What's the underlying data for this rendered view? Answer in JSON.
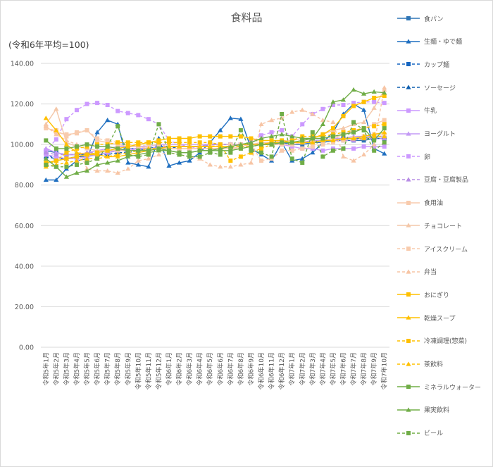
{
  "chart_data": {
    "type": "line",
    "title": "食料品",
    "ylabel": "(令和6年平均=100)",
    "xlabel": "",
    "ylim": [
      0,
      140
    ],
    "yticks": [
      "0.00",
      "20.00",
      "40.00",
      "60.00",
      "80.00",
      "100.00",
      "120.00",
      "140.00"
    ],
    "grid": true,
    "legend_position": "right",
    "categories": [
      "令和5年1月",
      "令和5年2月",
      "令和5年3月",
      "令和5年4月",
      "令和5年5月",
      "令和5年6月",
      "令和5年7月",
      "令和5年8月",
      "令和5年9月",
      "令和5年10月",
      "令和5年11月",
      "令和5年12月",
      "令和6年1月",
      "令和6年2月",
      "令和6年3月",
      "令和6年4月",
      "令和6年5月",
      "令和6年6月",
      "令和6年7月",
      "令和6年8月",
      "令和6年9月",
      "令和6年10月",
      "令和6年11月",
      "令和6年12月",
      "令和7年1月",
      "令和7年2月",
      "令和7年3月",
      "令和7年4月",
      "令和7年5月",
      "令和7年6月",
      "令和7年7月",
      "令和7年8月",
      "令和7年9月",
      "令和7年10月"
    ],
    "series": [
      {
        "name": "食パン",
        "color": "#2e75b6",
        "dash": false,
        "marker": "square",
        "values": [
          97,
          96,
          95,
          95,
          95,
          95,
          96,
          97,
          97,
          97,
          98,
          98,
          99,
          99,
          99,
          99,
          100,
          100,
          100,
          100,
          100,
          100,
          100,
          101,
          100,
          100,
          101,
          101,
          102,
          102,
          102,
          102,
          103,
          103
        ]
      },
      {
        "name": "生麺・ゆで麺",
        "color": "#1f6fc0",
        "dash": false,
        "marker": "triangle",
        "values": [
          82.5,
          82.5,
          88,
          92,
          93,
          106,
          112,
          110,
          91,
          90,
          89,
          103,
          89.5,
          91,
          92,
          96,
          101,
          107,
          113,
          112.5,
          98,
          95,
          92,
          101,
          92,
          93,
          96,
          101,
          106,
          115,
          120,
          117,
          98,
          95.5
        ]
      },
      {
        "name": "カップ麺",
        "color": "#1565c0",
        "dash": true,
        "marker": "square",
        "values": [
          96,
          92,
          93,
          94,
          94,
          95,
          96,
          97,
          98,
          98,
          98,
          99,
          99,
          99,
          99,
          99,
          100,
          100,
          100,
          100,
          100,
          100,
          101,
          101,
          101,
          101,
          102,
          102,
          103,
          103,
          103,
          103,
          103,
          103
        ]
      },
      {
        "name": "ソーセージ",
        "color": "#1060b0",
        "dash": true,
        "marker": "triangle",
        "values": [
          94,
          93,
          93,
          94,
          94,
          95,
          95,
          96,
          96,
          97,
          97,
          98,
          98,
          99,
          99,
          99,
          100,
          100,
          100,
          100,
          100,
          100,
          100,
          101,
          101,
          101,
          102,
          102,
          102,
          103,
          103,
          103,
          104,
          104
        ]
      },
      {
        "name": "牛乳",
        "color": "#cc99ff",
        "dash": false,
        "marker": "square",
        "values": [
          95,
          94,
          93,
          93,
          94,
          95,
          96,
          97,
          97,
          98,
          98,
          98,
          99,
          99,
          99,
          99,
          100,
          100,
          100,
          100,
          100,
          100,
          100,
          100,
          99,
          98,
          98,
          97,
          98,
          98,
          98,
          99,
          99,
          99
        ]
      },
      {
        "name": "ヨーグルト",
        "color": "#c49af5",
        "dash": false,
        "marker": "triangle",
        "values": [
          98,
          96,
          95,
          95,
          96,
          97,
          98,
          99,
          99,
          99,
          99,
          100,
          100,
          100,
          100,
          100,
          100,
          100,
          100,
          100,
          100,
          100,
          101,
          101,
          101,
          101,
          102,
          102,
          103,
          103,
          104,
          104,
          104,
          104
        ]
      },
      {
        "name": "卵",
        "color": "#cc99ff",
        "dash": true,
        "marker": "square",
        "values": [
          97,
          102.5,
          112.5,
          117,
          120,
          120.5,
          119.5,
          116.5,
          115.5,
          114.5,
          112.5,
          110,
          102,
          100,
          99,
          98,
          98,
          98,
          99,
          100,
          101,
          104.5,
          106,
          107,
          104,
          110,
          115,
          117.5,
          119.5,
          119.5,
          120.5,
          121,
          121,
          120.5
        ]
      },
      {
        "name": "豆腐・豆腐製品",
        "color": "#b98ee6",
        "dash": true,
        "marker": "triangle",
        "values": [
          96,
          95,
          95,
          95,
          96,
          96,
          97,
          97,
          98,
          98,
          98,
          99,
          99,
          99,
          99,
          99,
          100,
          100,
          100,
          100,
          100,
          100,
          101,
          101,
          101,
          101,
          101,
          102,
          102,
          102,
          102,
          103,
          103,
          103
        ]
      },
      {
        "name": "食用油",
        "color": "#f8cbad",
        "dash": false,
        "marker": "square",
        "values": [
          108.5,
          106,
          105,
          105.5,
          107,
          102,
          101,
          100,
          99,
          99,
          98,
          98,
          98,
          98,
          98,
          98,
          98,
          98,
          98,
          98,
          99,
          100,
          100,
          100,
          100,
          101,
          101,
          102,
          103,
          105,
          107,
          108,
          110,
          112
        ]
      },
      {
        "name": "チョコレート",
        "color": "#f4c7a8",
        "dash": false,
        "marker": "triangle",
        "values": [
          110,
          117.5,
          101,
          99,
          98,
          97,
          97,
          97,
          97,
          97,
          97,
          98,
          98,
          98,
          98,
          98,
          98,
          98,
          98,
          99,
          100,
          101,
          101,
          102,
          102,
          103,
          103,
          105,
          107,
          108,
          110,
          111,
          118,
          127
        ]
      },
      {
        "name": "アイスクリーム",
        "color": "#f8cbad",
        "dash": true,
        "marker": "square",
        "values": [
          108,
          107,
          104,
          106,
          107,
          103,
          102,
          101,
          100,
          100,
          99,
          100,
          99,
          99,
          99,
          99,
          99,
          100,
          100,
          100,
          100,
          92,
          93,
          97,
          97,
          98,
          99,
          100,
          101,
          102,
          103,
          104,
          105,
          105
        ]
      },
      {
        "name": "弁当",
        "color": "#f7c5a5",
        "dash": true,
        "marker": "triangle",
        "values": [
          109,
          105,
          102,
          100,
          88,
          87,
          87,
          86,
          88,
          92,
          93,
          95,
          96,
          95,
          94,
          93,
          90,
          89,
          89,
          90,
          91,
          110,
          112,
          113,
          116,
          117,
          115,
          112,
          111,
          94,
          92,
          95,
          100,
          128
        ]
      },
      {
        "name": "おにぎり",
        "color": "#ffc000",
        "dash": false,
        "marker": "square",
        "values": [
          91,
          92,
          93,
          94,
          95,
          96,
          97,
          98,
          99,
          100,
          101,
          102,
          103,
          103,
          103,
          104,
          104,
          104,
          104,
          104,
          103,
          102,
          102,
          102,
          101,
          102,
          103,
          105,
          108,
          114,
          119,
          121,
          123,
          124
        ]
      },
      {
        "name": "乾燥スープ",
        "color": "#ffc000",
        "dash": false,
        "marker": "triangle",
        "values": [
          113,
          107,
          100,
          96,
          95,
          95,
          94,
          94,
          95,
          96,
          97,
          98,
          99,
          99,
          99,
          99,
          99,
          99,
          99,
          100,
          100,
          100,
          101,
          101,
          101,
          101,
          101,
          102,
          102,
          103,
          103,
          104,
          105,
          106
        ]
      },
      {
        "name": "冷凍調理(惣菜)",
        "color": "#ffc000",
        "dash": true,
        "marker": "square",
        "values": [
          90,
          92,
          96,
          98,
          99,
          100,
          100,
          101,
          101,
          101,
          101,
          101,
          101,
          101,
          101,
          101,
          101,
          100,
          92,
          94,
          96,
          98,
          100,
          101,
          102,
          104,
          104,
          104,
          105,
          106,
          107,
          108,
          109,
          110
        ]
      },
      {
        "name": "茶飲料",
        "color": "#ffc000",
        "dash": true,
        "marker": "triangle",
        "values": [
          89,
          90,
          91,
          92,
          93,
          93,
          94,
          95,
          96,
          97,
          98,
          98,
          99,
          99,
          99,
          99,
          99,
          99,
          99,
          99,
          99,
          100,
          100,
          101,
          101,
          101,
          101,
          102,
          102,
          103,
          103,
          103,
          104,
          104
        ]
      },
      {
        "name": "ミネラルウォーター",
        "color": "#70ad47",
        "dash": false,
        "marker": "square",
        "values": [
          102,
          98,
          98,
          99,
          100,
          99,
          99,
          98,
          97,
          97,
          97,
          98,
          97,
          96,
          96,
          97,
          97,
          97,
          97,
          98,
          99,
          100,
          100,
          101,
          101,
          102,
          103,
          103,
          104,
          105,
          106,
          108,
          102,
          108
        ]
      },
      {
        "name": "果実飲料",
        "color": "#70ad47",
        "dash": false,
        "marker": "triangle",
        "values": [
          93,
          89,
          84,
          86,
          87,
          90,
          91,
          92,
          94,
          95,
          96,
          97,
          97,
          96,
          96,
          97,
          97,
          98,
          99,
          100,
          101,
          103,
          104,
          105,
          104,
          103,
          103,
          110,
          121,
          122,
          127,
          125,
          126,
          125.5
        ]
      },
      {
        "name": "ビール",
        "color": "#70ad47",
        "dash": true,
        "marker": "square",
        "values": [
          90,
          89,
          89,
          90,
          91,
          93,
          99,
          109,
          95,
          94,
          95,
          110,
          96,
          95,
          94,
          94,
          96,
          95,
          96,
          107,
          97,
          96,
          94,
          115,
          93,
          91,
          106,
          94,
          97,
          98,
          111,
          107,
          97,
          101
        ]
      }
    ]
  },
  "legend": [
    {
      "label": "食パン"
    },
    {
      "label": "生麺・ゆで麺"
    },
    {
      "label": "カップ麺"
    },
    {
      "label": "ソーセージ"
    },
    {
      "label": "牛乳"
    },
    {
      "label": "ヨーグルト"
    },
    {
      "label": "卵"
    },
    {
      "label": "豆腐・豆腐製品"
    },
    {
      "label": "食用油"
    },
    {
      "label": "チョコレート"
    },
    {
      "label": "アイスクリーム"
    },
    {
      "label": "弁当"
    },
    {
      "label": "おにぎり"
    },
    {
      "label": "乾燥スープ"
    },
    {
      "label": "冷凍調理(惣菜)"
    },
    {
      "label": "茶飲料"
    },
    {
      "label": "ミネラルウォーター"
    },
    {
      "label": "果実飲料"
    },
    {
      "label": "ビール"
    }
  ]
}
